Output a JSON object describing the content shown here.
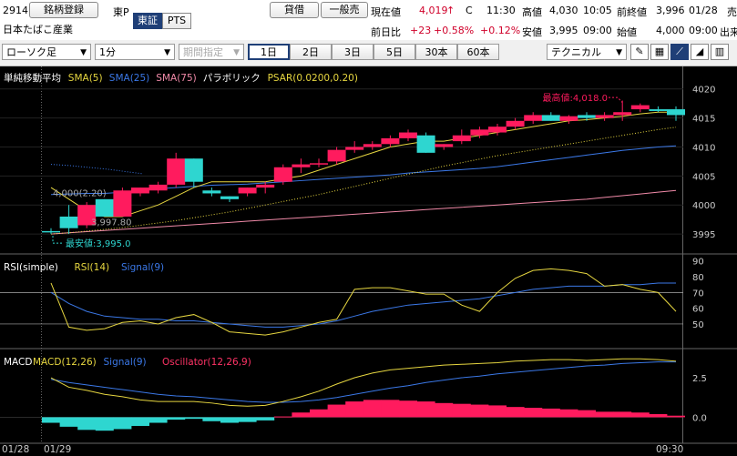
{
  "header": {
    "code": "2914",
    "name": "日本たばこ産業",
    "register_btn": "銘柄登録",
    "market_short": "東P",
    "market_tabs": [
      "東証",
      "PTS"
    ],
    "trade_btns": [
      "貸借",
      "一般売"
    ],
    "current_label": "現在値",
    "current_value": "4,019",
    "current_arrow": "↑",
    "current_flag": "C",
    "current_time": "11:30",
    "prev_day_label": "前日比",
    "prev_day_change": "+23",
    "prev_day_pct": "+0.58%",
    "prev_day_pct2": "+0.12%",
    "high_label": "高値",
    "high_value": "4,030",
    "high_time": "10:05",
    "low_label": "安値",
    "low_value": "3,995",
    "low_time": "09:00",
    "prev_close_label": "前終値",
    "prev_close_value": "3,996",
    "prev_close_date": "01/28",
    "open_label": "始値",
    "open_value": "4,000",
    "open_time": "09:00",
    "volume_label_cut": "出来",
    "sell_label_cut": "売"
  },
  "toolbar": {
    "chart_type": "ローソク足",
    "interval": "1分",
    "period": "期間指定",
    "ranges": [
      "1日",
      "2日",
      "3日",
      "5日",
      "30本",
      "60本"
    ],
    "active_range": "1日",
    "technical": "テクニカル",
    "icons": [
      "pen-icon",
      "grid-icon",
      "line-chart-icon",
      "area-chart-icon",
      "bar-chart-icon"
    ]
  },
  "colors": {
    "up": "#ff1b5e",
    "down": "#2ed6d0",
    "sma5": "#e6d640",
    "sma25": "#3b78e7",
    "sma75": "#f08aa8",
    "psar": "#e6d640",
    "bg": "#000000"
  },
  "price_panel": {
    "legend": [
      {
        "text": "単純移動平均",
        "color": "#ffffff"
      },
      {
        "text": "SMA(5)",
        "color": "#e6d640"
      },
      {
        "text": "SMA(25)",
        "color": "#3b78e7"
      },
      {
        "text": "SMA(75)",
        "color": "#f08aa8"
      },
      {
        "text": "パラボリック",
        "color": "#ffffff"
      },
      {
        "text": "PSAR(0.0200,0.20)",
        "color": "#e6d640"
      }
    ],
    "high_annotation": "最高値:4,018.0",
    "low_annotation": "最安値:3,995.0",
    "mid_annotation": "3,997.80",
    "left_annotation": "4,000(2.20)",
    "yticks": [
      3995,
      4000,
      4005,
      4010,
      4015,
      4020
    ],
    "ylim": [
      3992.5,
      4022
    ]
  },
  "rsi_panel": {
    "legend": [
      {
        "text": "RSI(simple)",
        "color": "#ffffff"
      },
      {
        "text": "RSI(14)",
        "color": "#e6d640"
      },
      {
        "text": "Signal(9)",
        "color": "#3b78e7"
      }
    ],
    "yticks": [
      50,
      60,
      70,
      80,
      90
    ],
    "ylim": [
      39,
      91
    ]
  },
  "macd_panel": {
    "legend": [
      {
        "text": "MACD",
        "color": "#ffffff"
      },
      {
        "text": "MACD(12,26)",
        "color": "#e6d640"
      },
      {
        "text": "Signal(9)",
        "color": "#3b78e7"
      },
      {
        "text": "Oscillator(12,26,9)",
        "color": "#ff3366"
      }
    ],
    "yticks": [
      "2.5",
      "0.0"
    ],
    "ylim": [
      -1.3,
      4.0
    ]
  },
  "xaxis": {
    "left_date": "01/28",
    "date2": "01/29",
    "right_time": "09:30"
  },
  "chart_data": {
    "type": "candlestick",
    "candles": [
      {
        "o": 3995.5,
        "h": 3996,
        "l": 3995,
        "c": 3995.3
      },
      {
        "o": 3998,
        "h": 4000,
        "l": 3995,
        "c": 3996
      },
      {
        "o": 3996.5,
        "h": 4000.5,
        "l": 3996,
        "c": 4000
      },
      {
        "o": 4001,
        "h": 4001,
        "l": 3998,
        "c": 3998
      },
      {
        "o": 3998,
        "h": 4003,
        "l": 3998,
        "c": 4002.5
      },
      {
        "o": 4002,
        "h": 4003,
        "l": 4001.5,
        "c": 4003
      },
      {
        "o": 4002.5,
        "h": 4004,
        "l": 4002,
        "c": 4003.5
      },
      {
        "o": 4003.5,
        "h": 4009,
        "l": 4003,
        "c": 4008
      },
      {
        "o": 4008,
        "h": 4008,
        "l": 4003,
        "c": 4004
      },
      {
        "o": 4002.5,
        "h": 4003,
        "l": 4001.5,
        "c": 4002
      },
      {
        "o": 4001.5,
        "h": 4001.5,
        "l": 4000.5,
        "c": 4001
      },
      {
        "o": 4002,
        "h": 4003,
        "l": 4001.5,
        "c": 4003
      },
      {
        "o": 4003,
        "h": 4004,
        "l": 4002,
        "c": 4003.5
      },
      {
        "o": 4004,
        "h": 4007,
        "l": 4003.5,
        "c": 4006.5
      },
      {
        "o": 4006.5,
        "h": 4008,
        "l": 4005.5,
        "c": 4007
      },
      {
        "o": 4007,
        "h": 4008,
        "l": 4006.5,
        "c": 4007.2
      },
      {
        "o": 4007.5,
        "h": 4010,
        "l": 4007,
        "c": 4009.5
      },
      {
        "o": 4009.5,
        "h": 4011,
        "l": 4009,
        "c": 4010
      },
      {
        "o": 4010,
        "h": 4011,
        "l": 4009.5,
        "c": 4010.5
      },
      {
        "o": 4010.5,
        "h": 4012,
        "l": 4010,
        "c": 4011.5
      },
      {
        "o": 4011.5,
        "h": 4013,
        "l": 4011,
        "c": 4012.5
      },
      {
        "o": 4012,
        "h": 4012.5,
        "l": 4009,
        "c": 4009
      },
      {
        "o": 4010,
        "h": 4010.5,
        "l": 4009.5,
        "c": 4010.5
      },
      {
        "o": 4011,
        "h": 4013,
        "l": 4010.5,
        "c": 4012
      },
      {
        "o": 4012,
        "h": 4013.5,
        "l": 4011.5,
        "c": 4013
      },
      {
        "o": 4012.5,
        "h": 4014,
        "l": 4012,
        "c": 4013.5
      },
      {
        "o": 4013.5,
        "h": 4015,
        "l": 4013,
        "c": 4014.5
      },
      {
        "o": 4014.5,
        "h": 4016,
        "l": 4014,
        "c": 4015.5
      },
      {
        "o": 4015.5,
        "h": 4016,
        "l": 4014.5,
        "c": 4014.5
      },
      {
        "o": 4014.5,
        "h": 4015.5,
        "l": 4014,
        "c": 4015.3
      },
      {
        "o": 4015.5,
        "h": 4016,
        "l": 4014.5,
        "c": 4015
      },
      {
        "o": 4015,
        "h": 4016,
        "l": 4014.5,
        "c": 4015.5
      },
      {
        "o": 4015.5,
        "h": 4018,
        "l": 4014.5,
        "c": 4016
      },
      {
        "o": 4016.5,
        "h": 4017.5,
        "l": 4016,
        "c": 4017.2
      },
      {
        "o": 4016.5,
        "h": 4017,
        "l": 4016,
        "c": 4016.2
      },
      {
        "o": 4016.5,
        "h": 4017,
        "l": 4014.5,
        "c": 4015.5
      }
    ],
    "sma5": [
      4003,
      4001,
      3999,
      3998,
      3998,
      3999,
      4000,
      4001.5,
      4003,
      4004,
      4004,
      4004,
      4004,
      4004.5,
      4005,
      4006,
      4007,
      4008,
      4009,
      4010,
      4010.5,
      4011,
      4011,
      4011.5,
      4012,
      4012.5,
      4013,
      4013.5,
      4014,
      4014.5,
      4014.7,
      4015,
      4015.3,
      4015.7,
      4016,
      4016
    ],
    "sma25": [
      4001.8,
      4001.9,
      4002,
      4002,
      4002.2,
      4002.5,
      4002.8,
      4003,
      4003.2,
      4003.4,
      4003.5,
      4003.6,
      4003.8,
      4004,
      4004.2,
      4004.4,
      4004.6,
      4004.8,
      4005,
      4005.2,
      4005.5,
      4005.7,
      4005.9,
      4006.1,
      4006.3,
      4006.6,
      4007,
      4007.4,
      4007.8,
      4008.2,
      4008.6,
      4009,
      4009.4,
      4009.7,
      4010,
      4010.2
    ],
    "sma75": [
      3995,
      3995.2,
      3995.4,
      3995.6,
      3995.8,
      3996,
      3996.2,
      3996.4,
      3996.6,
      3996.8,
      3997,
      3997.2,
      3997.4,
      3997.6,
      3997.8,
      3998,
      3998.2,
      3998.4,
      3998.6,
      3998.8,
      3999,
      3999.2,
      3999.4,
      3999.6,
      3999.8,
      4000,
      4000.2,
      4000.4,
      4000.6,
      4000.8,
      4001,
      4001.3,
      4001.6,
      4001.9,
      4002.2,
      4002.5
    ],
    "psar_hist": [
      4007,
      4006.8,
      4006.5,
      4006.2,
      4005.8,
      4005.4
    ],
    "psar": [
      3995,
      3995.2,
      3995.5,
      3995.8,
      3996.1,
      3996.5,
      3996.9,
      3997.3,
      3997.8,
      3998.3,
      3998.8,
      3999.4,
      4000,
      4000.6,
      4001.2,
      4001.8,
      4002.5,
      4003.2,
      4003.9,
      4004.6,
      4005.3,
      4006,
      4006.7,
      4007.3,
      4007.9,
      4008.5,
      4009,
      4009.5,
      4010,
      4010.5,
      4011,
      4011.5,
      4012,
      4012.5,
      4013,
      4013.4
    ],
    "rsi14": [
      76,
      48,
      46,
      47,
      51,
      52,
      50,
      54,
      56,
      51,
      45,
      44,
      43,
      45,
      48,
      51,
      53,
      72,
      73,
      73,
      71,
      69,
      69,
      62,
      58,
      70,
      79,
      84,
      85,
      84,
      82,
      74,
      75,
      72,
      70,
      58
    ],
    "rsi_signal": [
      70,
      63,
      58,
      55,
      54,
      53,
      53,
      52,
      52,
      51,
      50,
      49,
      48,
      48,
      49,
      50,
      52,
      55,
      58,
      60,
      62,
      63,
      64,
      65,
      66,
      68,
      70,
      72,
      73,
      74,
      74,
      74,
      75,
      75,
      76,
      76
    ],
    "macd": [
      2.5,
      1.9,
      1.7,
      1.45,
      1.3,
      1.1,
      1.0,
      1.0,
      1.0,
      0.9,
      0.75,
      0.7,
      0.75,
      1.0,
      1.3,
      1.65,
      2.1,
      2.5,
      2.8,
      3.0,
      3.1,
      3.2,
      3.3,
      3.35,
      3.4,
      3.45,
      3.55,
      3.6,
      3.65,
      3.65,
      3.6,
      3.65,
      3.7,
      3.7,
      3.65,
      3.55
    ],
    "macd_signal": [
      2.4,
      2.2,
      2.05,
      1.9,
      1.75,
      1.6,
      1.45,
      1.35,
      1.3,
      1.2,
      1.1,
      1.0,
      0.95,
      0.95,
      1.0,
      1.1,
      1.25,
      1.45,
      1.65,
      1.85,
      2.0,
      2.2,
      2.35,
      2.5,
      2.6,
      2.75,
      2.85,
      2.95,
      3.05,
      3.15,
      3.25,
      3.3,
      3.4,
      3.45,
      3.5,
      3.5
    ],
    "oscillator": [
      -0.35,
      -0.6,
      -0.8,
      -0.85,
      -0.75,
      -0.55,
      -0.35,
      -0.15,
      -0.1,
      -0.25,
      -0.35,
      -0.3,
      -0.2,
      0.05,
      0.3,
      0.5,
      0.8,
      1.0,
      1.1,
      1.1,
      1.05,
      1.0,
      0.9,
      0.85,
      0.8,
      0.75,
      0.65,
      0.6,
      0.55,
      0.5,
      0.45,
      0.35,
      0.35,
      0.3,
      0.2,
      0.1
    ]
  }
}
